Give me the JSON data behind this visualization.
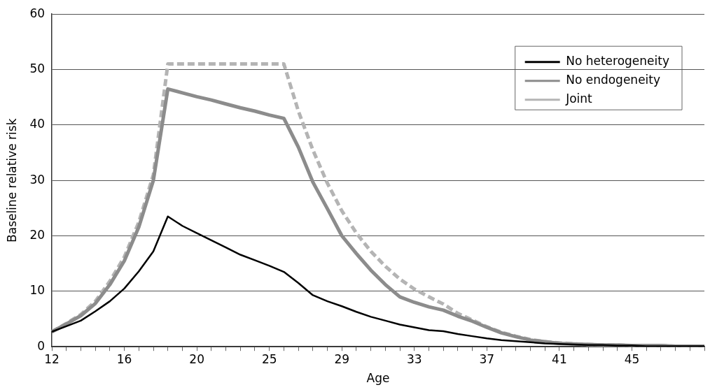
{
  "chart_data": {
    "type": "line",
    "xlabel": "Age",
    "ylabel": "Baseline relative risk",
    "categories": [
      "12",
      null,
      null,
      null,
      null,
      "16",
      null,
      null,
      null,
      null,
      "20",
      null,
      null,
      null,
      null,
      "25",
      null,
      null,
      null,
      null,
      "29",
      null,
      null,
      null,
      null,
      "33",
      null,
      null,
      null,
      null,
      "37",
      null,
      null,
      null,
      null,
      "41",
      null,
      null,
      null,
      null,
      "45",
      null,
      null,
      null,
      null,
      null
    ],
    "series": [
      {
        "name": "No heterogeneity",
        "color": "#000000",
        "line_style": "solid",
        "values": [
          2.7,
          3.7,
          4.7,
          6.4,
          8.2,
          10.5,
          13.6,
          17.2,
          23.5,
          21.8,
          20.5,
          19.2,
          17.9,
          16.6,
          15.6,
          14.6,
          13.5,
          11.5,
          9.3,
          8.2,
          7.3,
          6.3,
          5.4,
          4.7,
          4.0,
          3.5,
          3.0,
          2.8,
          2.3,
          1.9,
          1.5,
          1.2,
          1.0,
          0.8,
          0.6,
          0.5,
          0.4,
          0.3,
          0.3,
          0.2,
          0.2,
          0.1,
          0.1,
          0.1,
          0.1,
          0.1
        ]
      },
      {
        "name": "No endogeneity",
        "color": "#8c8c8c",
        "line_style": "solid",
        "values": [
          2.7,
          4.1,
          5.6,
          7.8,
          11.2,
          15.5,
          21.6,
          30.0,
          46.5,
          45.8,
          45.1,
          44.5,
          43.8,
          43.1,
          42.5,
          41.8,
          41.2,
          36.0,
          29.7,
          24.9,
          20.0,
          16.8,
          13.8,
          11.2,
          9.0,
          8.0,
          7.2,
          6.6,
          5.5,
          4.6,
          3.5,
          2.5,
          1.8,
          1.2,
          0.9,
          0.6,
          0.5,
          0.4,
          0.3,
          0.3,
          0.2,
          0.2,
          0.2,
          0.1,
          0.1,
          0.1
        ]
      },
      {
        "name": "Joint",
        "color": "#b4b4b4",
        "line_style": "dashed",
        "values": [
          2.7,
          4.2,
          5.8,
          8.2,
          11.8,
          16.2,
          22.5,
          31.0,
          51.0,
          51.0,
          51.0,
          51.0,
          51.0,
          51.0,
          51.0,
          51.0,
          51.0,
          42.5,
          35.5,
          29.5,
          24.5,
          20.5,
          17.2,
          14.5,
          12.2,
          10.4,
          9.0,
          7.7,
          6.0,
          4.8,
          3.6,
          2.6,
          1.9,
          1.3,
          0.9,
          0.7,
          0.5,
          0.4,
          0.3,
          0.3,
          0.2,
          0.2,
          0.2,
          0.1,
          0.1,
          0.1
        ]
      }
    ],
    "ylim": [
      0,
      60
    ],
    "yticks": [
      0,
      10,
      20,
      30,
      40,
      50,
      60
    ],
    "grid": "y",
    "legend": "top right",
    "marker": "none"
  }
}
